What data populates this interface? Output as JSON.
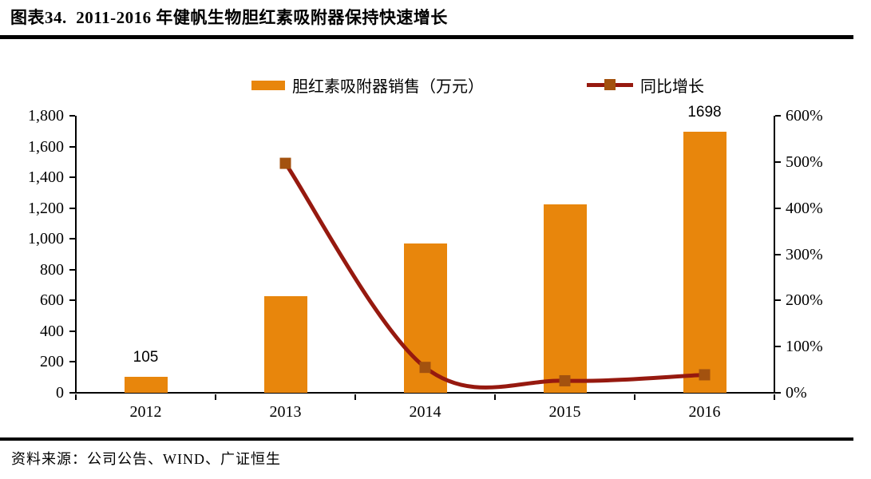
{
  "header": {
    "title": "图表34.  2011-2016 年健帆生物胆红素吸附器保持快速增长"
  },
  "footer": {
    "source": "资料来源：公司公告、WIND、广证恒生"
  },
  "colors": {
    "bar_orange": "#E8860C",
    "line_dark_red": "#96190F",
    "marker_brown": "#A3520F",
    "axis_black": "#000000"
  },
  "chart_data": {
    "type": "bar",
    "subtype": "combo-bar-line",
    "categories": [
      "2012",
      "2013",
      "2014",
      "2015",
      "2016"
    ],
    "series": [
      {
        "name": "胆红素吸附器销售（万元）",
        "type": "bar",
        "axis": "left",
        "color": "#E8860C",
        "values": [
          105,
          627,
          970,
          1225,
          1698
        ]
      },
      {
        "name": "同比增长",
        "type": "line",
        "axis": "right",
        "color": "#96190F",
        "marker_color": "#A3520F",
        "unit": "%",
        "values": [
          null,
          497,
          55,
          26,
          39
        ]
      }
    ],
    "left_axis": {
      "min": 0,
      "max": 1800,
      "step": 200,
      "tick_labels": [
        "0",
        "200",
        "400",
        "600",
        "800",
        "1,000",
        "1,200",
        "1,400",
        "1,600",
        "1,800"
      ]
    },
    "right_axis": {
      "min": 0,
      "max": 600,
      "step": 100,
      "tick_labels": [
        "0%",
        "100%",
        "200%",
        "300%",
        "400%",
        "500%",
        "600%"
      ]
    },
    "data_labels": [
      {
        "category": "2012",
        "text": "105"
      },
      {
        "category": "2016",
        "text": "1698"
      }
    ],
    "legend_position": "top",
    "grid": false
  }
}
